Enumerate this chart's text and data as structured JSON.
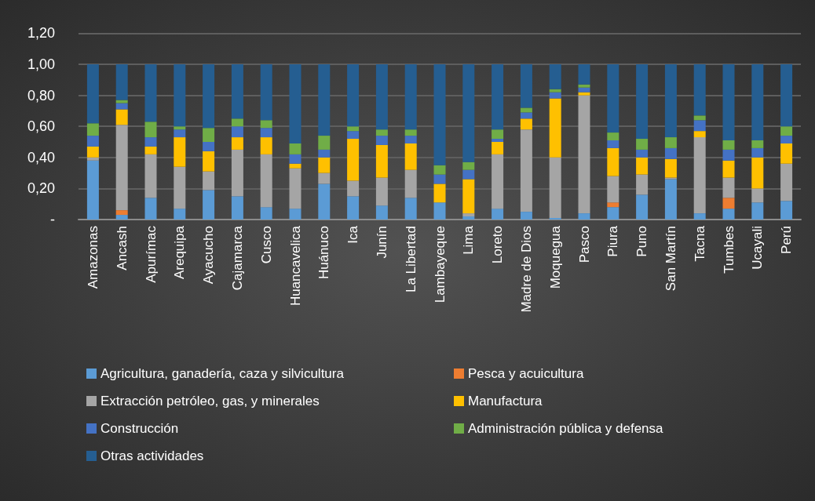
{
  "chart_data": {
    "type": "bar",
    "stacked": true,
    "categories": [
      "Amazonas",
      "Ancash",
      "Apurímac",
      "Arequipa",
      "Ayacucho",
      "Cajamarca",
      "Cusco",
      "Huancavelica",
      "Huánuco",
      "Ica",
      "Junín",
      "La Libertad",
      "Lambayeque",
      "Lima",
      "Loreto",
      "Madre de Dios",
      "Moquegua",
      "Pasco",
      "Piura",
      "Puno",
      "San Martín",
      "Tacna",
      "Tumbes",
      "Ucayali",
      "Perú"
    ],
    "series": [
      {
        "name": "Agricultura, ganadería, caza y silvicultura",
        "color": "#5b9bd5",
        "values": [
          0.38,
          0.03,
          0.14,
          0.07,
          0.19,
          0.15,
          0.08,
          0.07,
          0.23,
          0.15,
          0.09,
          0.14,
          0.11,
          0.02,
          0.07,
          0.05,
          0.01,
          0.04,
          0.08,
          0.16,
          0.26,
          0.04,
          0.07,
          0.11,
          0.12
        ]
      },
      {
        "name": "Pesca y acuicultura",
        "color": "#ed7d31",
        "values": [
          0,
          0.03,
          0,
          0,
          0,
          0,
          0,
          0,
          0,
          0,
          0,
          0,
          0,
          0,
          0,
          0,
          0,
          0,
          0.03,
          0,
          0,
          0,
          0.07,
          0,
          0
        ]
      },
      {
        "name": "Extracción petróleo, gas, y minerales",
        "color": "#a5a5a5",
        "values": [
          0.02,
          0.55,
          0.28,
          0.27,
          0.12,
          0.3,
          0.34,
          0.26,
          0.07,
          0.1,
          0.18,
          0.18,
          0,
          0.02,
          0.35,
          0.53,
          0.39,
          0.76,
          0.17,
          0.13,
          0.01,
          0.49,
          0.13,
          0.09,
          0.24
        ]
      },
      {
        "name": "Manufactura",
        "color": "#ffc000",
        "values": [
          0.07,
          0.1,
          0.05,
          0.19,
          0.13,
          0.08,
          0.11,
          0.03,
          0.1,
          0.27,
          0.21,
          0.17,
          0.12,
          0.22,
          0.08,
          0.07,
          0.38,
          0.02,
          0.18,
          0.11,
          0.12,
          0.04,
          0.11,
          0.2,
          0.13
        ]
      },
      {
        "name": "Construcción",
        "color": "#4472c4",
        "values": [
          0.07,
          0.04,
          0.06,
          0.05,
          0.06,
          0.07,
          0.06,
          0.06,
          0.05,
          0.05,
          0.06,
          0.05,
          0.06,
          0.06,
          0.02,
          0.04,
          0.04,
          0.03,
          0.05,
          0.05,
          0.07,
          0.07,
          0.07,
          0.06,
          0.05
        ]
      },
      {
        "name": "Administración pública y defensa",
        "color": "#70ad47",
        "values": [
          0.08,
          0.02,
          0.1,
          0.02,
          0.09,
          0.05,
          0.05,
          0.07,
          0.09,
          0.03,
          0.04,
          0.04,
          0.06,
          0.05,
          0.06,
          0.03,
          0.02,
          0.02,
          0.05,
          0.07,
          0.07,
          0.03,
          0.06,
          0.05,
          0.06
        ]
      },
      {
        "name": "Otras actividades",
        "color": "#255e91",
        "values": [
          0.38,
          0.23,
          0.37,
          0.4,
          0.41,
          0.35,
          0.36,
          0.51,
          0.46,
          0.4,
          0.42,
          0.42,
          0.65,
          0.63,
          0.42,
          0.28,
          0.16,
          0.13,
          0.44,
          0.48,
          0.47,
          0.33,
          0.49,
          0.49,
          0.4
        ]
      }
    ],
    "ylim": [
      0,
      1.2
    ],
    "yticks": [
      {
        "value": 0,
        "label": "-"
      },
      {
        "value": 0.2,
        "label": "0,20"
      },
      {
        "value": 0.4,
        "label": "0,40"
      },
      {
        "value": 0.6,
        "label": "0,60"
      },
      {
        "value": 0.8,
        "label": "0,80"
      },
      {
        "value": 1,
        "label": "1,00"
      },
      {
        "value": 1.2,
        "label": "1,20"
      }
    ],
    "grid": "y",
    "legend": "bottom"
  }
}
